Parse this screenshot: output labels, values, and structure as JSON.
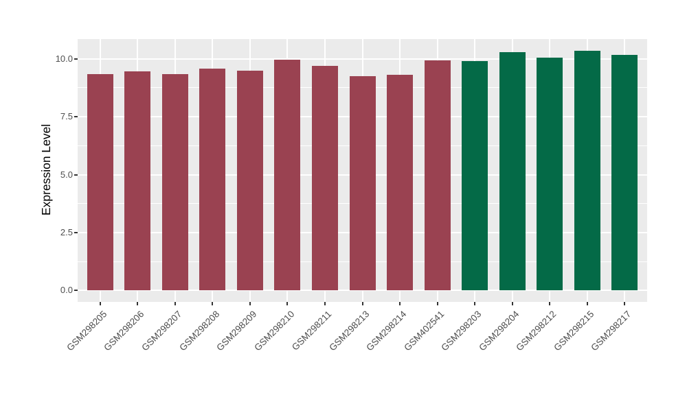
{
  "chart_data": {
    "type": "bar",
    "title": "",
    "xlabel": "",
    "ylabel": "Expression Level",
    "categories": [
      "GSM298205",
      "GSM298206",
      "GSM298207",
      "GSM298208",
      "GSM298209",
      "GSM298210",
      "GSM298211",
      "GSM298213",
      "GSM298214",
      "GSM402541",
      "GSM298203",
      "GSM298204",
      "GSM298212",
      "GSM298215",
      "GSM298217"
    ],
    "values": [
      9.35,
      9.47,
      9.35,
      9.57,
      9.5,
      9.97,
      9.69,
      9.25,
      9.31,
      9.93,
      9.91,
      10.28,
      10.04,
      10.34,
      10.18
    ],
    "groups": [
      "group1",
      "group1",
      "group1",
      "group1",
      "group1",
      "group1",
      "group1",
      "group1",
      "group1",
      "group1",
      "group2",
      "group2",
      "group2",
      "group2",
      "group2"
    ],
    "group_colors": {
      "group1": "#9A4251",
      "group2": "#046A47"
    },
    "y_major_ticks": [
      0.0,
      2.5,
      5.0,
      7.5,
      10.0
    ],
    "y_minor_ticks": [
      1.25,
      3.75,
      6.25,
      8.75
    ],
    "ylim": [
      -0.49,
      10.85
    ],
    "grid": "on",
    "legend": "none",
    "panel_background": "#EBEBEB",
    "gridline_color": "#ffffff",
    "axis_text_color": "#4D4D4D",
    "tick_mark_color": "#333333"
  }
}
